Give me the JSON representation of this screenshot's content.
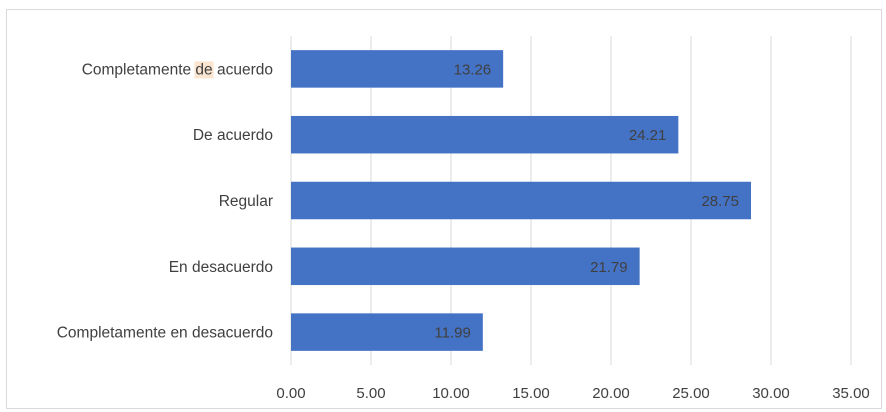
{
  "chart_data": {
    "type": "bar",
    "orientation": "horizontal",
    "categories": [
      "Completamente de acuerdo",
      "De acuerdo",
      "Regular",
      "En desacuerdo",
      "Completamente en desacuerdo"
    ],
    "values": [
      13.26,
      24.21,
      28.75,
      21.79,
      11.99
    ],
    "value_labels": [
      "13.26",
      "24.21",
      "28.75",
      "21.79",
      "11.99"
    ],
    "xlim": [
      0,
      35
    ],
    "x_ticks": [
      "0.00",
      "5.00",
      "10.00",
      "15.00",
      "20.00",
      "25.00",
      "30.00",
      "35.00"
    ],
    "bar_color": "#4472c4",
    "grid": "vertical",
    "title": "",
    "xlabel": "",
    "ylabel": ""
  }
}
